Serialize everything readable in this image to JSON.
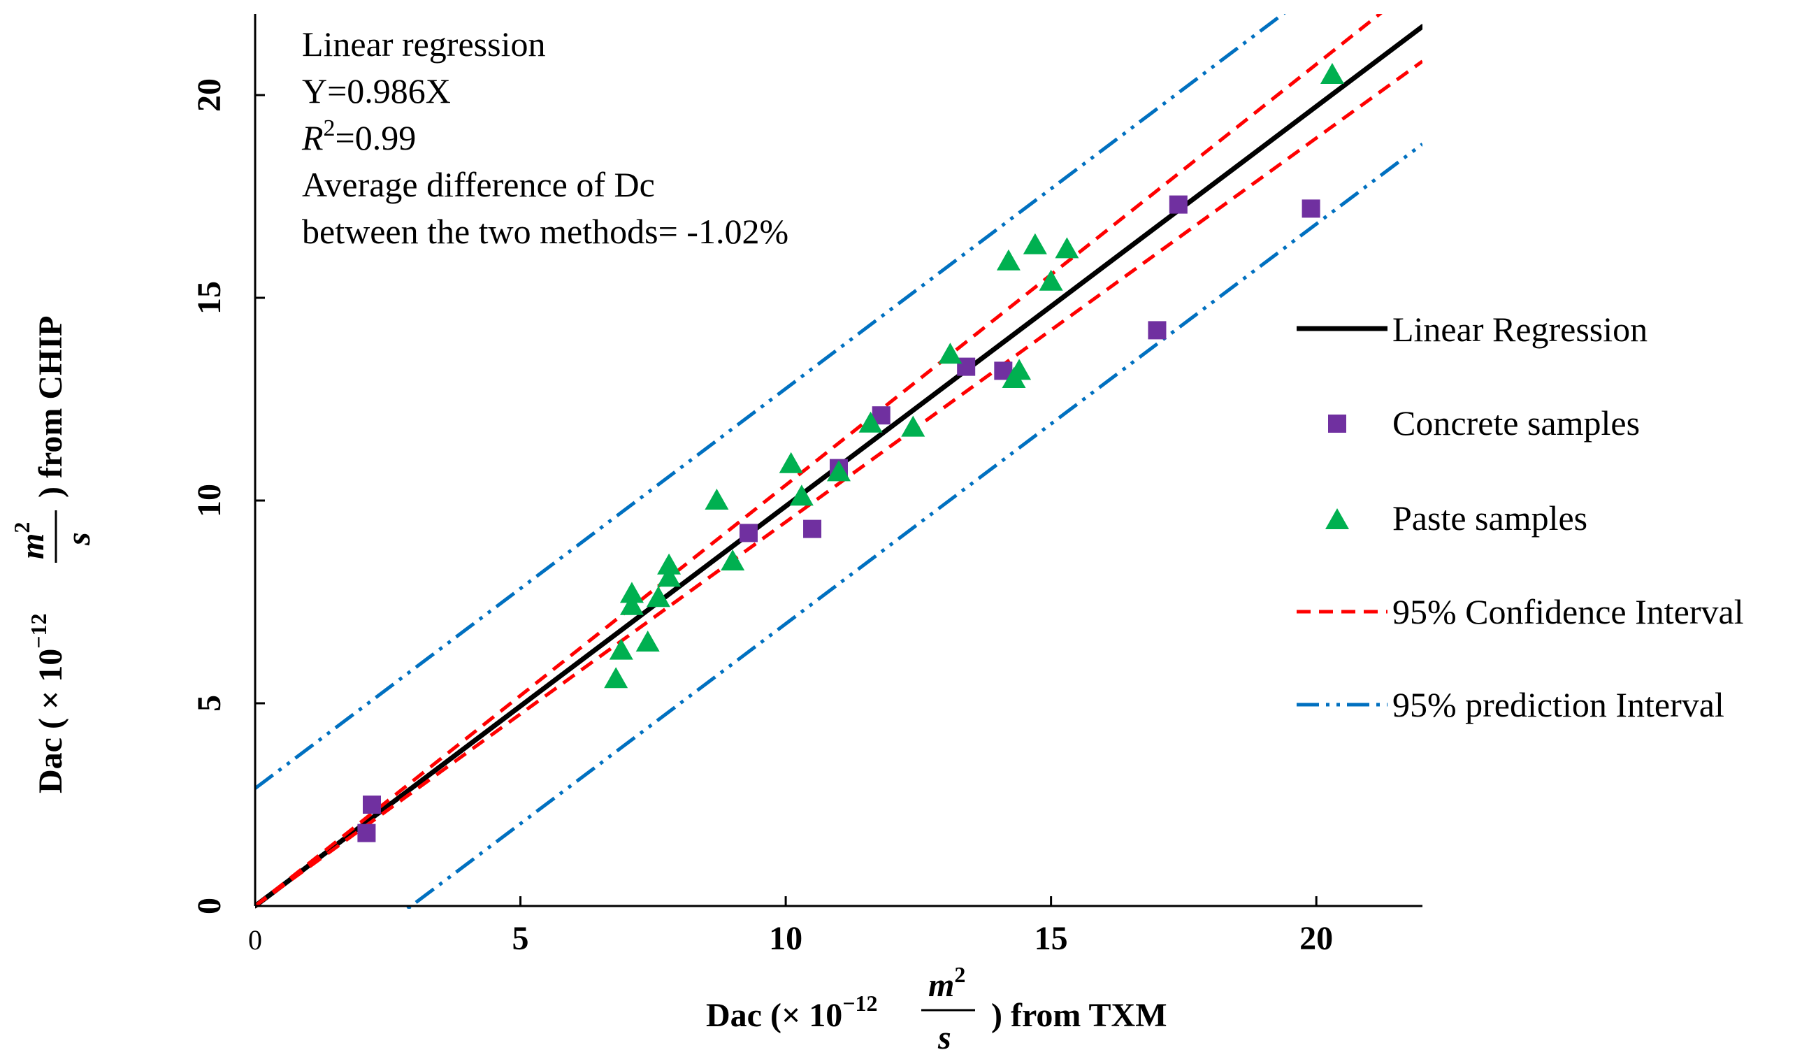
{
  "chart_data": {
    "type": "scatter",
    "title": "",
    "xlabel": {
      "prefix": "Dac (× 10",
      "exponent": "−12",
      "unit_numerator": "m",
      "unit_numerator_exp": "2",
      "unit_denominator": "s",
      "suffix": ") from TXM"
    },
    "ylabel": {
      "prefix": "Dac ( × 10",
      "exponent": "−12",
      "unit_numerator": "m",
      "unit_numerator_exp": "2",
      "unit_denominator": "s",
      "suffix": ") from CHIP"
    },
    "xlim": [
      0,
      22
    ],
    "ylim": [
      0,
      22
    ],
    "x_ticks": [
      0,
      5,
      10,
      15,
      20
    ],
    "y_ticks": [
      0,
      5,
      10,
      15,
      20
    ],
    "x_tick_labels": [
      "0",
      "5",
      "10",
      "15",
      "20"
    ],
    "y_tick_labels": [
      "0",
      "5",
      "10",
      "15",
      "20"
    ],
    "annotation": {
      "line1": "Linear regression",
      "line2": "Y=0.986X",
      "line3_var": "R",
      "line3_exp": "2",
      "line3_rest": "=0.99",
      "line4": "Average difference of Dc",
      "line5": "between the two methods= -1.02%"
    },
    "series": [
      {
        "name": "Linear Regression",
        "kind": "line",
        "style": "solid",
        "color": "#000000",
        "slope": 0.986,
        "intercept": 0,
        "x_range": [
          0,
          22
        ]
      },
      {
        "name": "Concrete samples",
        "kind": "scatter",
        "marker": "square",
        "color": "#7030A0",
        "points": [
          [
            2.1,
            1.8
          ],
          [
            2.2,
            2.5
          ],
          [
            9.3,
            9.2
          ],
          [
            10.5,
            9.3
          ],
          [
            11.0,
            10.8
          ],
          [
            11.8,
            12.1
          ],
          [
            13.4,
            13.3
          ],
          [
            14.1,
            13.2
          ],
          [
            17.0,
            14.2
          ],
          [
            17.4,
            17.3
          ],
          [
            19.9,
            17.2
          ]
        ]
      },
      {
        "name": "Paste samples",
        "kind": "scatter",
        "marker": "triangle",
        "color": "#00B050",
        "points": [
          [
            6.8,
            5.6
          ],
          [
            6.9,
            6.3
          ],
          [
            7.1,
            7.4
          ],
          [
            7.1,
            7.7
          ],
          [
            7.4,
            6.5
          ],
          [
            7.6,
            7.6
          ],
          [
            7.8,
            8.1
          ],
          [
            7.8,
            8.4
          ],
          [
            8.7,
            10.0
          ],
          [
            9.0,
            8.5
          ],
          [
            10.1,
            10.9
          ],
          [
            10.3,
            10.1
          ],
          [
            11.0,
            10.7
          ],
          [
            11.6,
            11.9
          ],
          [
            12.4,
            11.8
          ],
          [
            13.1,
            13.6
          ],
          [
            14.2,
            15.9
          ],
          [
            14.3,
            13.0
          ],
          [
            14.4,
            13.2
          ],
          [
            14.7,
            16.3
          ],
          [
            15.0,
            15.4
          ],
          [
            15.3,
            16.2
          ],
          [
            20.3,
            20.5
          ]
        ]
      },
      {
        "name": "95% Confidence Interval",
        "kind": "band",
        "style": "dashed",
        "color": "#FF0000",
        "slope_upper": 1.038,
        "slope_lower": 0.947,
        "x_range": [
          0,
          22
        ]
      },
      {
        "name": "95% prediction Interval",
        "kind": "band",
        "style": "dash-dot-dot",
        "color": "#0070C0",
        "upper_intercept": 2.9,
        "lower_intercept": -2.9,
        "slope": 0.986,
        "x_range": [
          0,
          22
        ]
      }
    ],
    "legend": [
      {
        "label": "Linear Regression"
      },
      {
        "label": "Concrete samples"
      },
      {
        "label": "Paste samples"
      },
      {
        "label": "95% Confidence Interval"
      },
      {
        "label": "95% prediction Interval"
      }
    ],
    "legend_position": "right"
  }
}
